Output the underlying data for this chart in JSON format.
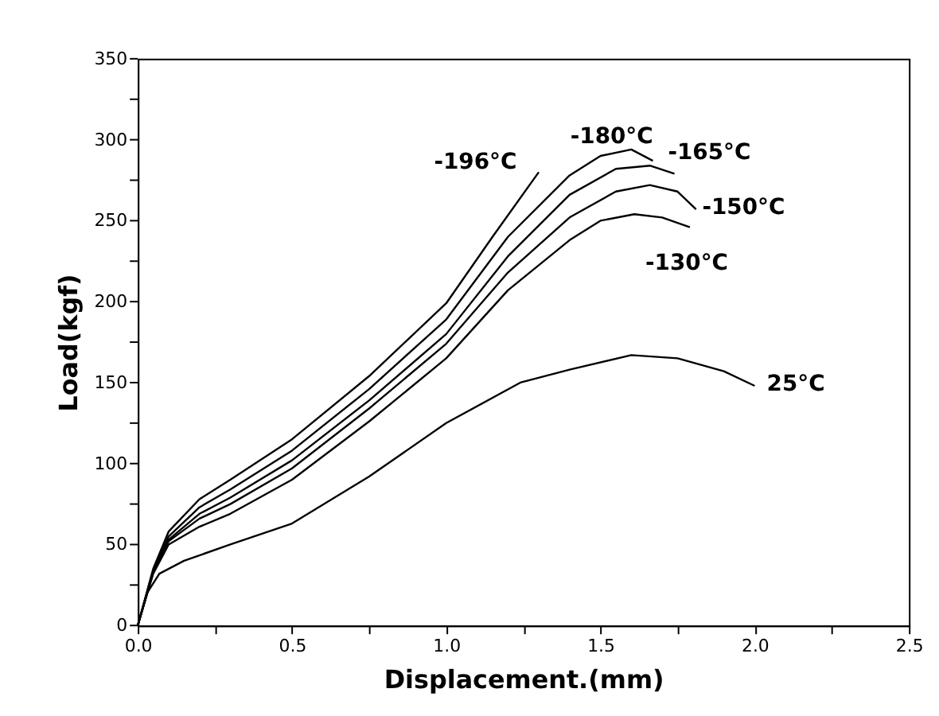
{
  "chart_data": {
    "type": "line",
    "xlabel": "Displacement.(mm)",
    "ylabel": "Load(kgf)",
    "xlim": [
      0,
      2.5
    ],
    "ylim": [
      0,
      350
    ],
    "xticks": [
      {
        "value": 0,
        "label": "0.0"
      },
      {
        "value": 0.25,
        "label": null
      },
      0.5,
      {
        "value": 0.75,
        "label": null
      },
      {
        "value": 1,
        "label": "1.0"
      },
      {
        "value": 1.25,
        "label": null
      },
      1.5,
      {
        "value": 1.75,
        "label": null
      },
      {
        "value": 2,
        "label": "2.0"
      },
      {
        "value": 2.25,
        "label": null
      },
      2.5
    ],
    "yticks": [
      0,
      {
        "value": 25,
        "label": null
      },
      50,
      {
        "value": 75,
        "label": null
      },
      100,
      {
        "value": 125,
        "label": null
      },
      150,
      {
        "value": 175,
        "label": null
      },
      200,
      {
        "value": 225,
        "label": null
      },
      250,
      {
        "value": 275,
        "label": null
      },
      300,
      {
        "value": 325,
        "label": null
      },
      350
    ],
    "grid": false,
    "marker": "none",
    "line_style": "solid",
    "series": [
      {
        "name": "-196°C",
        "color": "#000000",
        "x": [
          0,
          0.05,
          0.1,
          0.2,
          0.3,
          0.5,
          0.75,
          1.0,
          1.15,
          1.3
        ],
        "values": [
          0,
          35,
          58,
          78,
          90,
          115,
          154,
          199,
          240,
          280
        ]
      },
      {
        "name": "-180°C",
        "color": "#000000",
        "x": [
          0,
          0.05,
          0.1,
          0.2,
          0.3,
          0.5,
          0.75,
          1.0,
          1.2,
          1.4,
          1.5,
          1.6,
          1.67
        ],
        "values": [
          0,
          34,
          55,
          73,
          84,
          108,
          146,
          189,
          240,
          278,
          290,
          294,
          287
        ]
      },
      {
        "name": "-165°C",
        "color": "#000000",
        "x": [
          0,
          0.05,
          0.1,
          0.2,
          0.3,
          0.5,
          0.75,
          1.0,
          1.2,
          1.4,
          1.55,
          1.66,
          1.74
        ],
        "values": [
          0,
          33,
          53,
          69,
          79,
          102,
          139,
          180,
          228,
          266,
          282,
          284,
          279
        ]
      },
      {
        "name": "-150°C",
        "color": "#000000",
        "x": [
          0,
          0.05,
          0.1,
          0.2,
          0.3,
          0.5,
          0.75,
          1.0,
          1.2,
          1.4,
          1.55,
          1.66,
          1.75,
          1.81
        ],
        "values": [
          0,
          33,
          52,
          66,
          75,
          97,
          134,
          174,
          218,
          252,
          268,
          272,
          268,
          257
        ]
      },
      {
        "name": "-130°C",
        "color": "#000000",
        "x": [
          0,
          0.05,
          0.1,
          0.2,
          0.3,
          0.5,
          0.75,
          1.0,
          1.2,
          1.4,
          1.5,
          1.61,
          1.7,
          1.79
        ],
        "values": [
          0,
          32,
          50,
          61,
          69,
          90,
          126,
          165,
          207,
          238,
          250,
          254,
          252,
          246
        ]
      },
      {
        "name": "25°C",
        "color": "#000000",
        "x": [
          0,
          0.03,
          0.07,
          0.15,
          0.3,
          0.5,
          0.75,
          1.0,
          1.24,
          1.4,
          1.6,
          1.75,
          1.9,
          2.0
        ],
        "values": [
          0,
          20,
          32,
          40,
          50,
          63,
          92,
          125,
          150,
          158,
          167,
          165,
          157,
          148
        ]
      }
    ]
  }
}
